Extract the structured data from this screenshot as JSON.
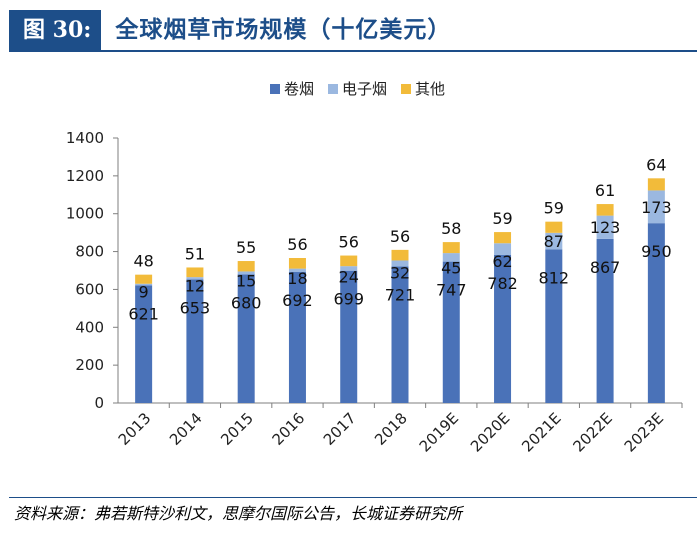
{
  "header": {
    "fig_label": "图 30:",
    "fig_title": "全球烟草市场规模（十亿美元）"
  },
  "source": "资料来源：弗若斯特沙利文，思摩尔国际公告，长城证券研究所",
  "colors": {
    "brand": "#1d4e89",
    "cigarette": "#4a72b8",
    "ecig": "#9bb8e0",
    "other": "#f2bb3a"
  },
  "chart_data": {
    "type": "bar",
    "stacked": true,
    "title": "全球烟草市场规模（十亿美元）",
    "categories": [
      "2013",
      "2014",
      "2015",
      "2016",
      "2017",
      "2018",
      "2019E",
      "2020E",
      "2021E",
      "2022E",
      "2023E"
    ],
    "series": [
      {
        "name": "卷烟",
        "color": "#4a72b8",
        "values": [
          621,
          653,
          680,
          692,
          699,
          721,
          747,
          782,
          812,
          867,
          950
        ]
      },
      {
        "name": "电子烟",
        "color": "#9bb8e0",
        "values": [
          9,
          12,
          15,
          18,
          24,
          32,
          45,
          62,
          87,
          123,
          173
        ]
      },
      {
        "name": "其他",
        "color": "#f2bb3a",
        "values": [
          48,
          51,
          55,
          56,
          56,
          56,
          58,
          59,
          59,
          61,
          64
        ]
      }
    ],
    "ylim": [
      0,
      1400
    ],
    "yticks": [
      0,
      200,
      400,
      600,
      800,
      1000,
      1200,
      1400
    ],
    "xlabel": "",
    "ylabel": "",
    "legend_position": "top-center",
    "grid": false
  }
}
